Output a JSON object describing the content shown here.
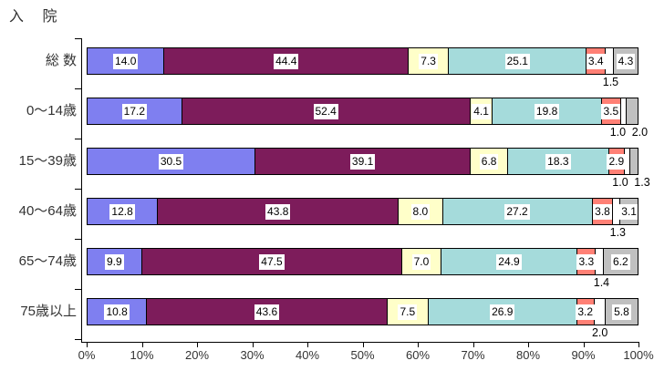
{
  "title": "入 院",
  "axis": {
    "x_tick_labels": [
      "0%",
      "10%",
      "20%",
      "30%",
      "40%",
      "50%",
      "60%",
      "70%",
      "80%",
      "90%",
      "100%"
    ]
  },
  "colors": {
    "axis": "#000000",
    "label_box_bg": "#ffffff",
    "series": [
      "#7f7ff0",
      "#7d1c5b",
      "#ffffc9",
      "#a5dbdb",
      "#ff8075",
      "#ffffff",
      "#c0c0c0"
    ]
  },
  "chart_data": {
    "type": "bar",
    "stacked": true,
    "orientation": "horizontal",
    "title": "入 院",
    "categories": [
      "総 数",
      "0〜14歳",
      "15〜39歳",
      "40〜64歳",
      "65〜74歳",
      "75歳以上"
    ],
    "xlim": [
      0,
      100
    ],
    "x_tick_labels": [
      "0%",
      "10%",
      "20%",
      "30%",
      "40%",
      "50%",
      "60%",
      "70%",
      "80%",
      "90%",
      "100%"
    ],
    "legend": "none",
    "series": [
      {
        "color": "#7f7ff0",
        "values": [
          14.0,
          17.2,
          30.5,
          12.8,
          9.9,
          10.8
        ],
        "label_below": [
          false,
          false,
          false,
          false,
          false,
          false
        ]
      },
      {
        "color": "#7d1c5b",
        "values": [
          44.4,
          52.4,
          39.1,
          43.8,
          47.5,
          43.6
        ],
        "label_below": [
          false,
          false,
          false,
          false,
          false,
          false
        ]
      },
      {
        "color": "#ffffc9",
        "values": [
          7.3,
          4.1,
          6.8,
          8.0,
          7.0,
          7.5
        ],
        "label_below": [
          false,
          false,
          false,
          false,
          false,
          false
        ]
      },
      {
        "color": "#a5dbdb",
        "values": [
          25.1,
          19.8,
          18.3,
          27.2,
          24.9,
          26.9
        ],
        "label_below": [
          false,
          false,
          false,
          false,
          false,
          false
        ]
      },
      {
        "color": "#ff8075",
        "values": [
          3.4,
          3.5,
          2.9,
          3.8,
          3.3,
          3.2
        ],
        "label_below": [
          false,
          false,
          false,
          false,
          false,
          false
        ]
      },
      {
        "color": "#ffffff",
        "values": [
          1.5,
          1.0,
          1.0,
          1.3,
          1.4,
          2.0
        ],
        "label_below": [
          true,
          true,
          true,
          true,
          true,
          true
        ]
      },
      {
        "color": "#c0c0c0",
        "values": [
          4.3,
          2.0,
          1.3,
          3.1,
          6.2,
          5.8
        ],
        "label_below": [
          false,
          true,
          true,
          false,
          false,
          false
        ]
      }
    ]
  }
}
